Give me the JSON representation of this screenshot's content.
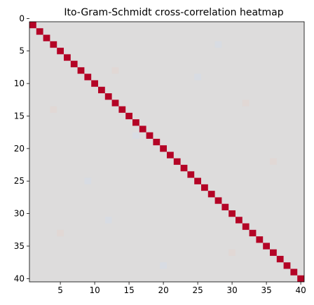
{
  "chart_data": {
    "type": "heatmap",
    "title": "Ito-Gram-Schmidt cross-correlation heatmap",
    "xlabel": "",
    "ylabel": "",
    "x_range": [
      0.5,
      40.5
    ],
    "y_range": [
      0.5,
      40.5
    ],
    "y_inverted": true,
    "grid": false,
    "n": 40,
    "diagonal_value": 1.0,
    "offdiagonal_value": 0.0,
    "x_ticks": [
      0,
      5,
      10,
      15,
      20,
      25,
      30,
      35,
      40
    ],
    "y_ticks": [
      0,
      5,
      10,
      15,
      20,
      25,
      30,
      35,
      40
    ],
    "colors": {
      "diagonal": "#b40426",
      "background": "#dddcdc",
      "faint_warm": "#e2d6d2",
      "faint_cool": "#d6dbe6"
    }
  }
}
